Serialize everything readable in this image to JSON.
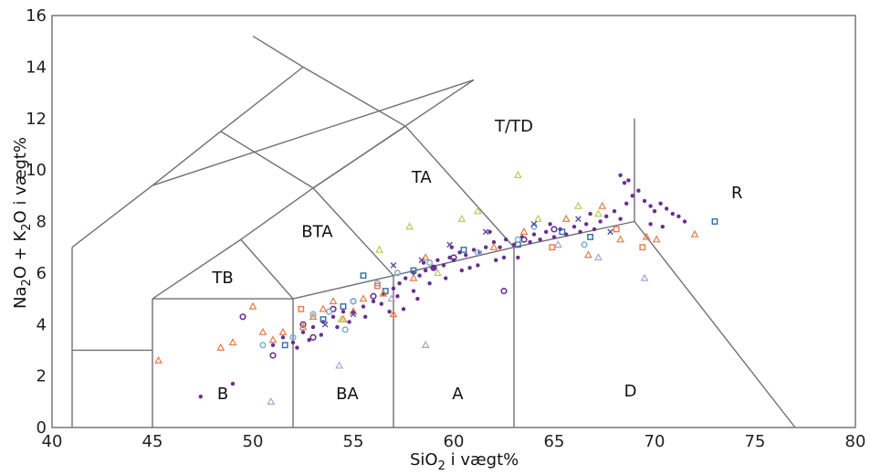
{
  "chart_data": {
    "type": "scatter",
    "title": "",
    "xlabel": {
      "pre": "SiO",
      "sub": "2",
      "post": " i vægt%"
    },
    "ylabel": {
      "a": "Na",
      "sub1": "2",
      "b": "O + K",
      "sub2": "2",
      "c": "O i vægt%"
    },
    "xlim": [
      40,
      80
    ],
    "ylim": [
      0,
      16
    ],
    "xticks": [
      "40",
      "45",
      "50",
      "55",
      "60",
      "65",
      "70",
      "75",
      "80"
    ],
    "yticks": [
      "0",
      "2",
      "4",
      "6",
      "8",
      "10",
      "12",
      "14",
      "16"
    ],
    "grid": false,
    "fields": [
      {
        "label": "B",
        "x": 48.5,
        "y": 1.1
      },
      {
        "label": "BA",
        "x": 54.7,
        "y": 1.1
      },
      {
        "label": "A",
        "x": 60.2,
        "y": 1.1
      },
      {
        "label": "D",
        "x": 68.8,
        "y": 1.2
      },
      {
        "label": "TB",
        "x": 48.5,
        "y": 5.6
      },
      {
        "label": "BTA",
        "x": 53.2,
        "y": 7.4
      },
      {
        "label": "TA",
        "x": 58.4,
        "y": 9.5
      },
      {
        "label": "T/TD",
        "x": 63.0,
        "y": 11.5
      },
      {
        "label": "R",
        "x": 74.1,
        "y": 8.9
      }
    ],
    "boundaries": [
      [
        [
          41,
          0
        ],
        [
          41,
          7
        ]
      ],
      [
        [
          41,
          7
        ],
        [
          45,
          9.4
        ]
      ],
      [
        [
          45,
          9.4
        ],
        [
          48.4,
          11.5
        ]
      ],
      [
        [
          48.4,
          11.5
        ],
        [
          52.5,
          14
        ]
      ],
      [
        [
          52.5,
          14
        ],
        [
          57.6,
          11.7
        ]
      ],
      [
        [
          57.6,
          11.7
        ],
        [
          53,
          9.3
        ]
      ],
      [
        [
          53,
          9.3
        ],
        [
          49.4,
          7.3
        ]
      ],
      [
        [
          49.4,
          7.3
        ],
        [
          45,
          5
        ]
      ],
      [
        [
          45,
          5
        ],
        [
          52,
          5
        ]
      ],
      [
        [
          49.4,
          7.3
        ],
        [
          52,
          5
        ]
      ],
      [
        [
          48.4,
          11.5
        ],
        [
          53,
          9.3
        ]
      ],
      [
        [
          53,
          9.3
        ],
        [
          57,
          5.9
        ]
      ],
      [
        [
          57.6,
          11.7
        ],
        [
          63,
          7
        ]
      ],
      [
        [
          53,
          9.3
        ],
        [
          61,
          13.5
        ]
      ],
      [
        [
          52.5,
          14
        ],
        [
          50,
          15.2
        ]
      ],
      [
        [
          45,
          9.4
        ],
        [
          61,
          13.5
        ]
      ],
      [
        [
          41,
          3
        ],
        [
          45,
          3
        ]
      ],
      [
        [
          45,
          0
        ],
        [
          45,
          5
        ]
      ],
      [
        [
          52,
          0
        ],
        [
          52,
          5
        ]
      ],
      [
        [
          57,
          0
        ],
        [
          57,
          5.9
        ]
      ],
      [
        [
          63,
          0
        ],
        [
          63,
          7
        ]
      ],
      [
        [
          52,
          5
        ],
        [
          57,
          5.9
        ]
      ],
      [
        [
          57,
          5.9
        ],
        [
          63,
          7
        ]
      ],
      [
        [
          63,
          7
        ],
        [
          69,
          8
        ]
      ],
      [
        [
          69,
          8
        ],
        [
          69,
          12
        ]
      ],
      [
        [
          69,
          8
        ],
        [
          77,
          0
        ]
      ]
    ],
    "series": [
      {
        "marker": "dot",
        "color": "#6a2f8f",
        "points": [
          [
            47.4,
            1.2
          ],
          [
            49,
            1.7
          ],
          [
            51,
            3.2
          ],
          [
            51.5,
            3.5
          ],
          [
            52,
            3.3
          ],
          [
            52.5,
            3.7
          ],
          [
            53,
            3.9
          ],
          [
            53.5,
            4.1
          ],
          [
            54,
            4.3
          ],
          [
            54.5,
            4.5
          ],
          [
            55,
            4.5
          ],
          [
            55.5,
            4.7
          ],
          [
            56,
            4.9
          ],
          [
            56.5,
            5.2
          ],
          [
            57,
            5.4
          ],
          [
            57.3,
            5.6
          ],
          [
            57.6,
            5.8
          ],
          [
            58,
            6.0
          ],
          [
            58.3,
            5.9
          ],
          [
            58.6,
            6.1
          ],
          [
            59,
            6.2
          ],
          [
            59.2,
            6.5
          ],
          [
            59.5,
            6.3
          ],
          [
            59.8,
            6.6
          ],
          [
            60,
            6.5
          ],
          [
            60.3,
            6.8
          ],
          [
            60.6,
            6.7
          ],
          [
            61,
            6.9
          ],
          [
            61.3,
            6.8
          ],
          [
            61.6,
            7.0
          ],
          [
            62,
            7.2
          ],
          [
            62.3,
            7.0
          ],
          [
            62.6,
            7.3
          ],
          [
            63,
            7.1
          ],
          [
            63.4,
            7.4
          ],
          [
            63.8,
            7.2
          ],
          [
            64,
            7.5
          ],
          [
            64.3,
            7.3
          ],
          [
            64.6,
            7.6
          ],
          [
            65,
            7.4
          ],
          [
            65.3,
            7.7
          ],
          [
            65.6,
            7.5
          ],
          [
            66,
            7.8
          ],
          [
            66.3,
            7.6
          ],
          [
            66.6,
            7.9
          ],
          [
            67,
            7.7
          ],
          [
            67.3,
            8.0
          ],
          [
            67.6,
            8.2
          ],
          [
            68,
            8.4
          ],
          [
            68.3,
            8.1
          ],
          [
            68.6,
            8.7
          ],
          [
            68.9,
            9.0
          ],
          [
            68.5,
            9.5
          ],
          [
            68.3,
            9.8
          ],
          [
            68.7,
            9.6
          ],
          [
            69.2,
            9.2
          ],
          [
            69.5,
            8.8
          ],
          [
            69.8,
            8.6
          ],
          [
            70,
            8.4
          ],
          [
            70.3,
            8.7
          ],
          [
            70.6,
            8.5
          ],
          [
            70.9,
            8.3
          ],
          [
            71.2,
            8.2
          ],
          [
            71.5,
            8.0
          ],
          [
            69.8,
            7.9
          ],
          [
            70.4,
            7.8
          ],
          [
            62.5,
            6.6
          ],
          [
            61.2,
            6.3
          ],
          [
            60.4,
            6.1
          ],
          [
            59.6,
            5.8
          ],
          [
            58.8,
            5.6
          ],
          [
            58,
            5.3
          ],
          [
            57.2,
            5.1
          ],
          [
            56.4,
            4.8
          ],
          [
            55.6,
            4.3
          ],
          [
            54.8,
            4.1
          ],
          [
            54.2,
            3.9
          ],
          [
            53.4,
            3.6
          ],
          [
            52.8,
            3.4
          ],
          [
            52.2,
            3.1
          ],
          [
            56.8,
            4.5
          ],
          [
            57.5,
            4.6
          ],
          [
            58.5,
            6.4
          ],
          [
            59.9,
            7.0
          ],
          [
            61.8,
            7.6
          ],
          [
            64.8,
            7.9
          ],
          [
            66.8,
            8.3
          ],
          [
            63.2,
            6.6
          ],
          [
            62.1,
            6.5
          ],
          [
            58.2,
            5.0
          ],
          [
            60.8,
            6.2
          ]
        ]
      },
      {
        "marker": "circle",
        "color": "#6a2f8f",
        "points": [
          [
            49.5,
            4.3
          ],
          [
            53,
            3.5
          ],
          [
            54,
            4.6
          ],
          [
            55,
            4.9
          ],
          [
            56,
            5.1
          ],
          [
            59,
            6.2
          ],
          [
            60,
            6.6
          ],
          [
            62.5,
            5.3
          ],
          [
            63.5,
            7.3
          ],
          [
            65,
            7.7
          ],
          [
            51,
            2.8
          ],
          [
            52.5,
            4.0
          ]
        ]
      },
      {
        "marker": "square",
        "color": "#2e6ea6",
        "points": [
          [
            55.5,
            5.9
          ],
          [
            53.5,
            4.2
          ],
          [
            54.5,
            4.7
          ],
          [
            58,
            6.1
          ],
          [
            60.5,
            6.9
          ],
          [
            63.2,
            7.1
          ],
          [
            65.4,
            7.6
          ],
          [
            66.8,
            7.4
          ],
          [
            73,
            8.0
          ],
          [
            51.6,
            3.2
          ],
          [
            56.6,
            5.3
          ]
        ]
      },
      {
        "marker": "circle",
        "color": "#7bb3d6",
        "points": [
          [
            52,
            3.5
          ],
          [
            53,
            4.4
          ],
          [
            53.8,
            4.5
          ],
          [
            55,
            4.9
          ],
          [
            56.2,
            5.6
          ],
          [
            57.2,
            6.0
          ],
          [
            58.8,
            6.4
          ],
          [
            61.2,
            6.8
          ],
          [
            63.2,
            7.3
          ],
          [
            64,
            7.8
          ],
          [
            66.5,
            7.1
          ],
          [
            50.5,
            3.2
          ],
          [
            54.6,
            3.8
          ]
        ]
      },
      {
        "marker": "triangle",
        "color": "#e87a44",
        "points": [
          [
            45.3,
            2.6
          ],
          [
            48.4,
            3.1
          ],
          [
            49,
            3.3
          ],
          [
            50,
            4.7
          ],
          [
            50.5,
            3.7
          ],
          [
            51,
            3.4
          ],
          [
            51.5,
            3.7
          ],
          [
            52.5,
            3.9
          ],
          [
            53,
            4.3
          ],
          [
            53.5,
            4.6
          ],
          [
            54,
            4.9
          ],
          [
            54.5,
            4.2
          ],
          [
            55,
            4.5
          ],
          [
            55.5,
            5.0
          ],
          [
            56.5,
            5.2
          ],
          [
            57,
            4.4
          ],
          [
            58,
            5.8
          ],
          [
            58.6,
            6.6
          ],
          [
            62,
            7.0
          ],
          [
            63.5,
            7.6
          ],
          [
            65.6,
            8.1
          ],
          [
            67.4,
            8.6
          ],
          [
            68.3,
            7.3
          ],
          [
            69.6,
            7.4
          ],
          [
            70.1,
            7.3
          ],
          [
            72,
            7.5
          ],
          [
            66.7,
            6.7
          ]
        ]
      },
      {
        "marker": "triangle",
        "color": "#b5cd58",
        "points": [
          [
            56.3,
            6.9
          ],
          [
            57.8,
            7.8
          ],
          [
            60.4,
            8.1
          ],
          [
            61.2,
            8.4
          ],
          [
            63.2,
            9.8
          ],
          [
            64.2,
            8.1
          ],
          [
            66.2,
            8.6
          ],
          [
            67.2,
            8.3
          ],
          [
            54.4,
            4.2
          ],
          [
            59.2,
            6.0
          ]
        ]
      },
      {
        "marker": "triangle",
        "color": "#a9a3d3",
        "points": [
          [
            54.3,
            2.4
          ],
          [
            58.6,
            3.2
          ],
          [
            69.5,
            5.8
          ],
          [
            67.2,
            6.6
          ],
          [
            65.2,
            7.1
          ],
          [
            50.9,
            1.0
          ],
          [
            56.9,
            5.0
          ]
        ]
      },
      {
        "marker": "cross",
        "color": "#5b4aa0",
        "points": [
          [
            57,
            6.3
          ],
          [
            58.4,
            6.5
          ],
          [
            59.8,
            7.1
          ],
          [
            61.6,
            7.6
          ],
          [
            64,
            7.9
          ],
          [
            66.2,
            8.1
          ],
          [
            55,
            4.4
          ],
          [
            53.6,
            4.0
          ],
          [
            67.8,
            7.6
          ]
        ]
      },
      {
        "marker": "square",
        "color": "#e87a44",
        "points": [
          [
            64.9,
            7.0
          ],
          [
            68.1,
            7.7
          ],
          [
            69.4,
            7.0
          ],
          [
            52.4,
            4.6
          ],
          [
            56.2,
            5.5
          ]
        ]
      }
    ]
  }
}
